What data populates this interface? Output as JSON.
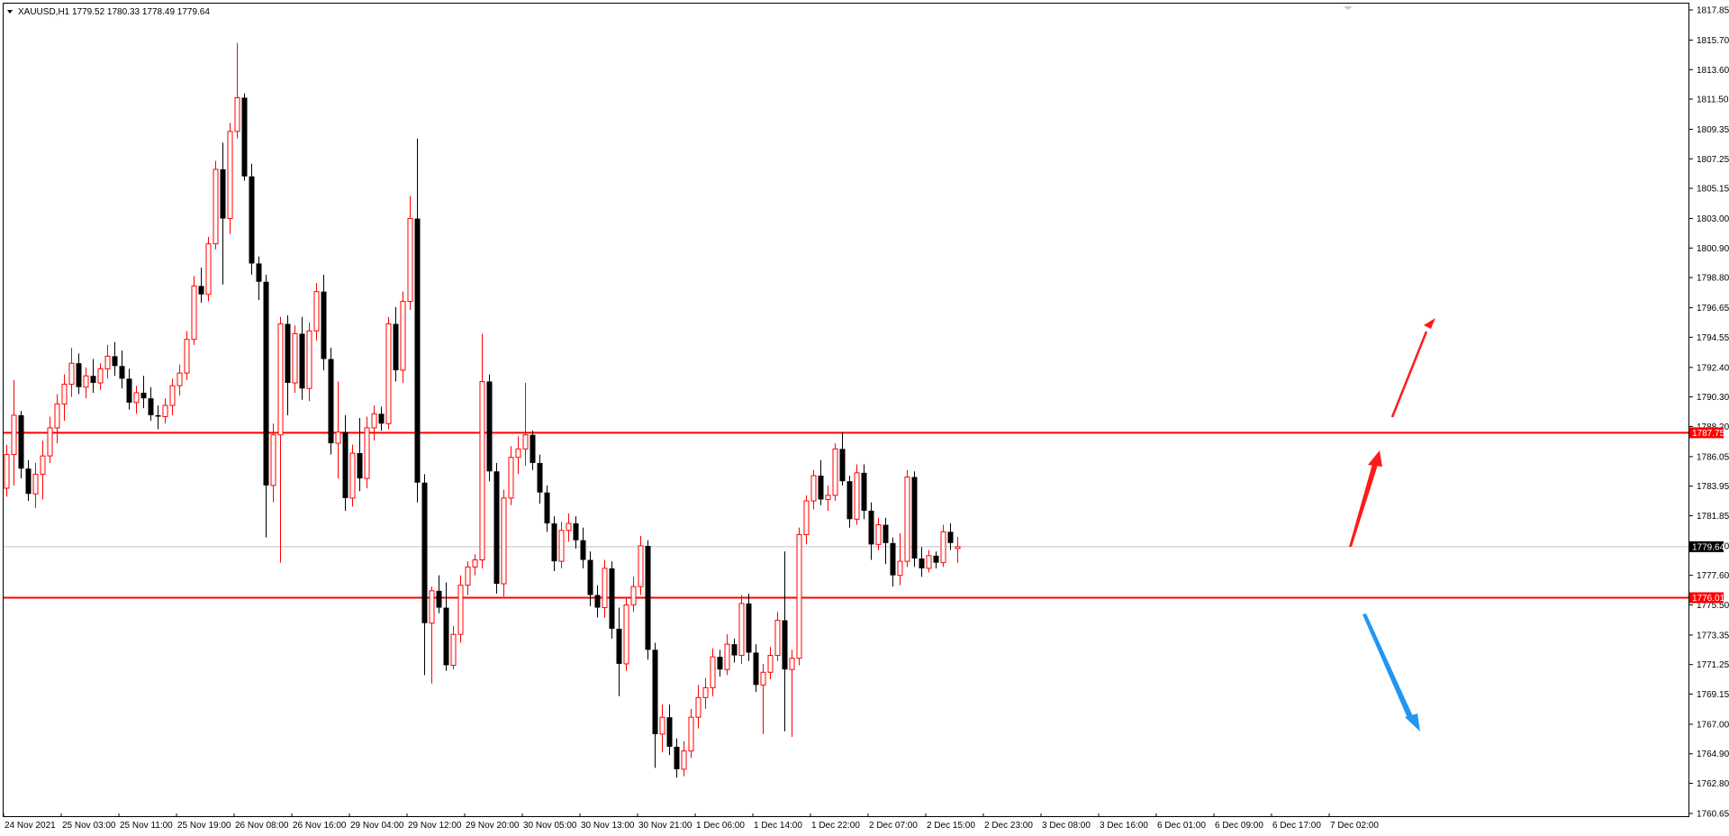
{
  "header": {
    "symbol": "XAUUSD,H1",
    "ohlc": "1779.52 1780.33 1778.49 1779.64"
  },
  "colors": {
    "bull": "#ff0000",
    "bear": "#000000",
    "level_line": "#ff0000",
    "bid_line": "#c0c0c0",
    "arrow_up": "#ff1a1a",
    "arrow_down": "#2196f3"
  },
  "chart_data": {
    "type": "candlestick",
    "timeframe": "H1",
    "ylim": [
      1760.65,
      1817.85
    ],
    "y_ticks": [
      "1817.85",
      "1815.70",
      "1813.60",
      "1811.50",
      "1809.35",
      "1807.25",
      "1805.15",
      "1803.00",
      "1800.90",
      "1798.80",
      "1796.65",
      "1794.55",
      "1792.40",
      "1790.30",
      "1788.20",
      "1786.05",
      "1783.95",
      "1781.85",
      "1779.70",
      "1777.60",
      "1775.50",
      "1773.35",
      "1771.25",
      "1769.15",
      "1767.00",
      "1764.90",
      "1762.80",
      "1760.65"
    ],
    "x_ticks": [
      "24 Nov 2021",
      "25 Nov 03:00",
      "25 Nov 11:00",
      "25 Nov 19:00",
      "26 Nov 08:00",
      "26 Nov 16:00",
      "29 Nov 04:00",
      "29 Nov 12:00",
      "29 Nov 20:00",
      "30 Nov 05:00",
      "30 Nov 13:00",
      "30 Nov 21:00",
      "1 Dec 06:00",
      "1 Dec 14:00",
      "1 Dec 22:00",
      "2 Dec 07:00",
      "2 Dec 15:00",
      "2 Dec 23:00",
      "3 Dec 08:00",
      "3 Dec 16:00",
      "6 Dec 01:00",
      "6 Dec 09:00",
      "6 Dec 17:00",
      "7 Dec 02:00"
    ],
    "levels": [
      {
        "price": 1787.75,
        "label": "1787.75"
      },
      {
        "price": 1776.01,
        "label": "1776.01"
      }
    ],
    "bid": {
      "price": 1779.64,
      "label": "1779.64"
    },
    "candles": [
      [
        1783.8,
        1786.9,
        1783.2,
        1786.2
      ],
      [
        1786.2,
        1791.5,
        1784.0,
        1789.0
      ],
      [
        1789.0,
        1789.3,
        1784.5,
        1785.2
      ],
      [
        1785.2,
        1785.8,
        1782.9,
        1783.4
      ],
      [
        1783.4,
        1785.6,
        1782.4,
        1784.8
      ],
      [
        1784.8,
        1787.2,
        1783.0,
        1786.1
      ],
      [
        1786.1,
        1788.9,
        1785.6,
        1788.1
      ],
      [
        1788.1,
        1790.5,
        1787.0,
        1789.8
      ],
      [
        1789.8,
        1791.9,
        1788.6,
        1791.2
      ],
      [
        1791.2,
        1793.8,
        1790.3,
        1792.7
      ],
      [
        1792.7,
        1793.4,
        1790.5,
        1791.0
      ],
      [
        1791.0,
        1792.4,
        1790.2,
        1791.8
      ],
      [
        1791.8,
        1793.0,
        1790.6,
        1791.3
      ],
      [
        1791.3,
        1792.7,
        1790.8,
        1792.3
      ],
      [
        1792.3,
        1794.0,
        1791.6,
        1793.2
      ],
      [
        1793.2,
        1794.2,
        1791.8,
        1792.5
      ],
      [
        1792.5,
        1793.6,
        1790.9,
        1791.6
      ],
      [
        1791.6,
        1792.3,
        1789.4,
        1789.9
      ],
      [
        1789.9,
        1791.1,
        1789.1,
        1790.6
      ],
      [
        1790.6,
        1791.8,
        1789.5,
        1790.2
      ],
      [
        1790.2,
        1791.0,
        1788.6,
        1789.0
      ],
      [
        1789.0,
        1789.7,
        1788.0,
        1788.9
      ],
      [
        1788.9,
        1790.2,
        1788.4,
        1789.7
      ],
      [
        1789.7,
        1791.6,
        1789.0,
        1791.1
      ],
      [
        1791.1,
        1792.6,
        1790.4,
        1792.0
      ],
      [
        1792.0,
        1795.0,
        1791.5,
        1794.4
      ],
      [
        1794.4,
        1798.9,
        1794.0,
        1798.2
      ],
      [
        1798.2,
        1799.5,
        1797.0,
        1797.6
      ],
      [
        1797.6,
        1801.7,
        1797.1,
        1801.2
      ],
      [
        1801.2,
        1807.1,
        1800.8,
        1806.5
      ],
      [
        1806.5,
        1808.4,
        1798.3,
        1803.0
      ],
      [
        1803.0,
        1809.8,
        1801.9,
        1809.2
      ],
      [
        1809.2,
        1815.5,
        1808.7,
        1811.6
      ],
      [
        1811.6,
        1811.9,
        1805.7,
        1806.0
      ],
      [
        1806.0,
        1806.9,
        1799.0,
        1799.8
      ],
      [
        1799.8,
        1800.3,
        1797.2,
        1798.5
      ],
      [
        1798.5,
        1799.0,
        1780.3,
        1784.0
      ],
      [
        1784.0,
        1788.4,
        1782.8,
        1787.6
      ],
      [
        1787.6,
        1796.0,
        1778.5,
        1795.5
      ],
      [
        1795.5,
        1796.1,
        1789.0,
        1791.3
      ],
      [
        1791.3,
        1795.4,
        1790.6,
        1794.8
      ],
      [
        1794.8,
        1796.0,
        1790.1,
        1790.9
      ],
      [
        1790.9,
        1795.6,
        1790.0,
        1795.0
      ],
      [
        1795.0,
        1798.4,
        1794.3,
        1797.8
      ],
      [
        1797.8,
        1799.0,
        1792.2,
        1793.0
      ],
      [
        1793.0,
        1793.8,
        1786.2,
        1787.0
      ],
      [
        1787.0,
        1791.4,
        1784.5,
        1787.8
      ],
      [
        1787.8,
        1789.0,
        1782.2,
        1783.1
      ],
      [
        1783.1,
        1786.9,
        1782.5,
        1786.3
      ],
      [
        1786.3,
        1788.8,
        1783.6,
        1784.5
      ],
      [
        1784.5,
        1788.9,
        1783.8,
        1788.1
      ],
      [
        1788.1,
        1789.7,
        1787.2,
        1789.1
      ],
      [
        1789.1,
        1789.6,
        1787.9,
        1788.4
      ],
      [
        1788.4,
        1796.0,
        1788.0,
        1795.5
      ],
      [
        1795.5,
        1796.7,
        1791.4,
        1792.2
      ],
      [
        1792.2,
        1797.8,
        1791.3,
        1797.1
      ],
      [
        1797.1,
        1804.6,
        1796.5,
        1803.0
      ],
      [
        1803.0,
        1808.7,
        1782.8,
        1784.2
      ],
      [
        1784.2,
        1784.8,
        1770.5,
        1774.2
      ],
      [
        1774.2,
        1776.8,
        1769.9,
        1776.5
      ],
      [
        1776.5,
        1777.6,
        1774.9,
        1775.3
      ],
      [
        1775.3,
        1777.1,
        1770.8,
        1771.2
      ],
      [
        1771.2,
        1774.0,
        1770.9,
        1773.4
      ],
      [
        1773.4,
        1777.6,
        1772.8,
        1776.9
      ],
      [
        1776.9,
        1778.6,
        1776.2,
        1778.2
      ],
      [
        1778.2,
        1779.1,
        1777.6,
        1778.7
      ],
      [
        1778.7,
        1794.8,
        1778.1,
        1791.4
      ],
      [
        1791.4,
        1791.9,
        1784.3,
        1785.0
      ],
      [
        1785.0,
        1785.6,
        1776.3,
        1777.0
      ],
      [
        1777.0,
        1783.7,
        1776.1,
        1783.1
      ],
      [
        1783.1,
        1786.8,
        1782.6,
        1786.0
      ],
      [
        1786.0,
        1787.5,
        1784.8,
        1786.6
      ],
      [
        1786.6,
        1791.3,
        1785.4,
        1787.6
      ],
      [
        1787.6,
        1787.9,
        1785.1,
        1785.6
      ],
      [
        1785.6,
        1786.2,
        1782.7,
        1783.5
      ],
      [
        1783.5,
        1784.0,
        1780.7,
        1781.3
      ],
      [
        1781.3,
        1781.8,
        1777.9,
        1778.6
      ],
      [
        1778.6,
        1781.4,
        1778.1,
        1780.8
      ],
      [
        1780.8,
        1782.0,
        1780.0,
        1781.3
      ],
      [
        1781.3,
        1781.8,
        1779.5,
        1780.1
      ],
      [
        1780.1,
        1781.0,
        1778.1,
        1778.7
      ],
      [
        1778.7,
        1779.3,
        1775.4,
        1776.2
      ],
      [
        1776.2,
        1776.9,
        1774.6,
        1775.3
      ],
      [
        1775.3,
        1778.7,
        1774.6,
        1778.1
      ],
      [
        1778.1,
        1778.6,
        1773.1,
        1773.8
      ],
      [
        1773.8,
        1775.3,
        1769.0,
        1771.3
      ],
      [
        1771.3,
        1776.0,
        1770.8,
        1775.5
      ],
      [
        1775.5,
        1777.5,
        1775.0,
        1776.8
      ],
      [
        1776.8,
        1780.4,
        1776.2,
        1779.7
      ],
      [
        1779.7,
        1780.1,
        1771.6,
        1772.3
      ],
      [
        1772.3,
        1772.8,
        1763.9,
        1766.3
      ],
      [
        1766.3,
        1768.4,
        1765.0,
        1767.5
      ],
      [
        1767.5,
        1768.4,
        1764.8,
        1765.4
      ],
      [
        1765.4,
        1766.0,
        1763.2,
        1763.8
      ],
      [
        1763.8,
        1765.8,
        1763.3,
        1765.1
      ],
      [
        1765.1,
        1768.1,
        1764.6,
        1767.5
      ],
      [
        1767.5,
        1769.8,
        1766.7,
        1768.9
      ],
      [
        1768.9,
        1770.3,
        1768.1,
        1769.6
      ],
      [
        1769.6,
        1772.4,
        1769.0,
        1771.8
      ],
      [
        1771.8,
        1772.3,
        1770.4,
        1770.9
      ],
      [
        1770.9,
        1773.4,
        1770.5,
        1772.7
      ],
      [
        1772.7,
        1773.1,
        1771.4,
        1771.9
      ],
      [
        1771.9,
        1776.2,
        1771.3,
        1775.6
      ],
      [
        1775.6,
        1776.3,
        1771.5,
        1772.1
      ],
      [
        1772.1,
        1772.7,
        1769.3,
        1769.8
      ],
      [
        1769.8,
        1771.3,
        1766.3,
        1770.7
      ],
      [
        1770.7,
        1772.5,
        1770.2,
        1771.9
      ],
      [
        1771.9,
        1775.0,
        1771.5,
        1774.4
      ],
      [
        1774.4,
        1779.3,
        1766.5,
        1770.9
      ],
      [
        1770.9,
        1772.3,
        1766.1,
        1771.7
      ],
      [
        1771.7,
        1781.0,
        1771.2,
        1780.5
      ],
      [
        1780.5,
        1783.3,
        1779.8,
        1782.9
      ],
      [
        1782.9,
        1785.1,
        1782.3,
        1784.7
      ],
      [
        1784.7,
        1785.8,
        1782.6,
        1783.0
      ],
      [
        1783.0,
        1784.0,
        1782.2,
        1783.3
      ],
      [
        1783.3,
        1787.0,
        1782.9,
        1786.6
      ],
      [
        1786.6,
        1787.8,
        1784.0,
        1784.3
      ],
      [
        1784.3,
        1784.7,
        1781.0,
        1781.6
      ],
      [
        1781.6,
        1785.5,
        1781.2,
        1784.9
      ],
      [
        1784.9,
        1785.5,
        1781.6,
        1782.2
      ],
      [
        1782.2,
        1782.8,
        1778.7,
        1779.8
      ],
      [
        1779.8,
        1781.7,
        1779.4,
        1781.2
      ],
      [
        1781.2,
        1781.7,
        1778.4,
        1779.9
      ],
      [
        1779.9,
        1780.3,
        1776.8,
        1777.6
      ],
      [
        1777.6,
        1780.6,
        1776.9,
        1778.6
      ],
      [
        1778.6,
        1785.1,
        1778.2,
        1784.6
      ],
      [
        1784.6,
        1785.0,
        1778.2,
        1778.8
      ],
      [
        1778.8,
        1779.6,
        1777.5,
        1778.1
      ],
      [
        1778.1,
        1779.4,
        1777.8,
        1779.0
      ],
      [
        1779.0,
        1779.3,
        1778.1,
        1778.5
      ],
      [
        1778.5,
        1781.2,
        1778.2,
        1780.7
      ],
      [
        1780.7,
        1781.3,
        1779.4,
        1779.9
      ],
      [
        1779.52,
        1780.33,
        1778.49,
        1779.64
      ]
    ]
  }
}
